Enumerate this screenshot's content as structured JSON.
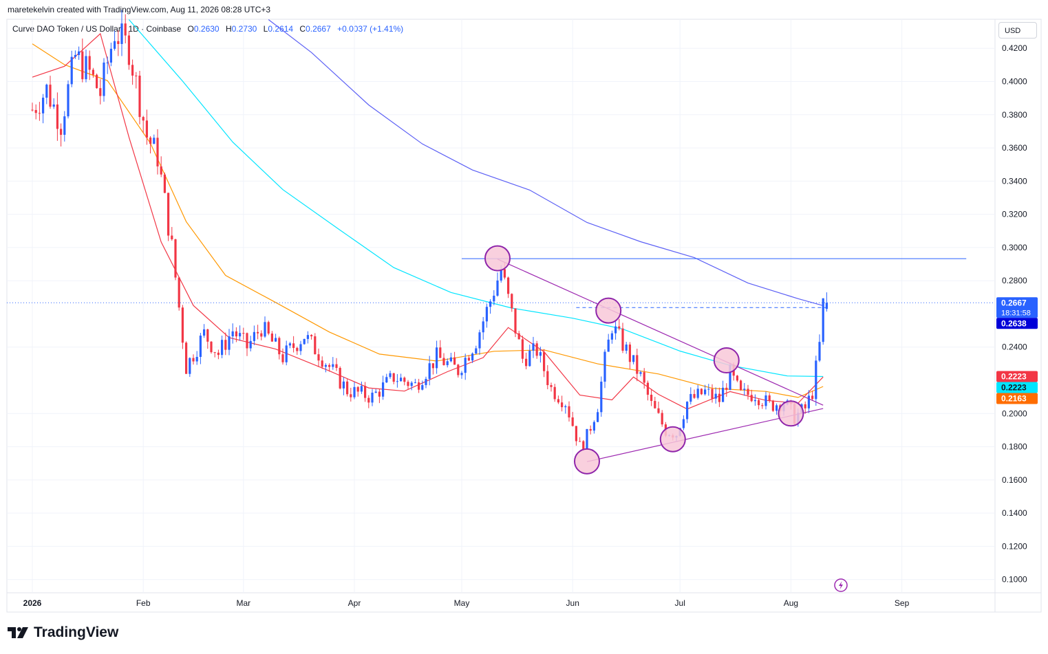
{
  "header": {
    "credit": "maretekelvin created with TradingView.com, Aug 11, 2026 08:28 UTC+3"
  },
  "legend": {
    "symbol": "Curve DAO Token / US Dollar · 1D · Coinbase",
    "o_label": "O",
    "o": "0.2630",
    "h_label": "H",
    "h": "0.2730",
    "l_label": "L",
    "l": "0.2614",
    "c_label": "C",
    "c": "0.2667",
    "change": "+0.0037 (+1.41%)"
  },
  "currency_button": "USD",
  "footer": {
    "brand": "TradingView"
  },
  "colors": {
    "up": "#2962ff",
    "down": "#f23645",
    "ema_fast": "#f23645",
    "ema_mid": "#ff9800",
    "ema_slow": "#00e5ff",
    "ema_long": "#5b5ff5",
    "trendline": "#9c27b0",
    "marker_fill": "#f8c8d8",
    "marker_stroke": "#8e24aa",
    "resistance": "#2962ff"
  },
  "chart_data": {
    "type": "candlestick",
    "y_range": [
      0.092,
      0.4375
    ],
    "y_ticks": [
      "0.4200",
      "0.4000",
      "0.3800",
      "0.3600",
      "0.3400",
      "0.3200",
      "0.3000",
      "0.2800",
      "0.2400",
      "0.2000",
      "0.1800",
      "0.1600",
      "0.1400",
      "0.1200",
      "0.1000"
    ],
    "x_labels": [
      {
        "label": "2026",
        "x": "2026-01-01"
      },
      {
        "label": "Feb",
        "x": "2026-02-01"
      },
      {
        "label": "Mar",
        "x": "2026-03-01"
      },
      {
        "label": "Apr",
        "x": "2026-04-01"
      },
      {
        "label": "May",
        "x": "2026-05-01"
      },
      {
        "label": "Jun",
        "x": "2026-06-01"
      },
      {
        "label": "Jul",
        "x": "2026-07-01"
      },
      {
        "label": "Aug",
        "x": "2026-08-01"
      },
      {
        "label": "Sep",
        "x": "2026-09-01"
      }
    ],
    "price_badges": [
      {
        "price": 0.2667,
        "label": "0.2667",
        "countdown": "18:31:58",
        "color": "#2962ff"
      },
      {
        "price": 0.2638,
        "label": "0.2638",
        "color": "#0000d8"
      },
      {
        "price": 0.2223,
        "label": "0.2223",
        "color": "#f23645"
      },
      {
        "price": 0.2223,
        "label": "0.2223",
        "color": "#00e5ff"
      },
      {
        "price": 0.2163,
        "label": "0.2163",
        "color": "#ff6d00"
      }
    ],
    "last_price": 0.2667,
    "dashed_level": 0.2638,
    "resistance": {
      "price": 0.2933,
      "from": "2026-05-01",
      "to": "2026-09-19"
    },
    "trend_upper": [
      {
        "x": "2026-05-11",
        "y": 0.293
      },
      {
        "x": "2026-08-10",
        "y": 0.205
      }
    ],
    "trend_lower": [
      {
        "x": "2026-06-05",
        "y": 0.171
      },
      {
        "x": "2026-08-10",
        "y": 0.203
      }
    ],
    "markers": [
      {
        "x": "2026-05-11",
        "y": 0.2935
      },
      {
        "x": "2026-06-11",
        "y": 0.262
      },
      {
        "x": "2026-06-29",
        "y": 0.1845
      },
      {
        "x": "2026-07-14",
        "y": 0.232
      },
      {
        "x": "2026-08-01",
        "y": 0.2
      },
      {
        "x": "2026-06-05",
        "y": 0.1712
      }
    ],
    "ema_fast_pts": [
      [
        "2026-01-01",
        0.4026
      ],
      [
        "2026-01-10",
        0.4092
      ],
      [
        "2026-01-20",
        0.4288
      ],
      [
        "2026-01-28",
        0.3665
      ],
      [
        "2026-02-06",
        0.3033
      ],
      [
        "2026-02-15",
        0.2651
      ],
      [
        "2026-02-25",
        0.2457
      ],
      [
        "2026-03-10",
        0.2388
      ],
      [
        "2026-03-25",
        0.2257
      ],
      [
        "2026-04-05",
        0.2154
      ],
      [
        "2026-04-15",
        0.2135
      ],
      [
        "2026-04-27",
        0.2252
      ],
      [
        "2026-05-07",
        0.2337
      ],
      [
        "2026-05-14",
        0.2518
      ],
      [
        "2026-05-24",
        0.2372
      ],
      [
        "2026-06-03",
        0.2111
      ],
      [
        "2026-06-12",
        0.2082
      ],
      [
        "2026-06-18",
        0.222
      ],
      [
        "2026-06-25",
        0.2115
      ],
      [
        "2026-07-03",
        0.2027
      ],
      [
        "2026-07-15",
        0.2132
      ],
      [
        "2026-07-25",
        0.2079
      ],
      [
        "2026-08-03",
        0.2062
      ],
      [
        "2026-08-10",
        0.222
      ]
    ],
    "ema_mid_pts": [
      [
        "2026-01-01",
        0.4227
      ],
      [
        "2026-01-10",
        0.4101
      ],
      [
        "2026-01-22",
        0.4005
      ],
      [
        "2026-02-03",
        0.3628
      ],
      [
        "2026-02-13",
        0.3156
      ],
      [
        "2026-02-24",
        0.2832
      ],
      [
        "2026-03-10",
        0.2669
      ],
      [
        "2026-03-25",
        0.2491
      ],
      [
        "2026-04-08",
        0.2358
      ],
      [
        "2026-04-24",
        0.2316
      ],
      [
        "2026-05-10",
        0.2375
      ],
      [
        "2026-05-24",
        0.2383
      ],
      [
        "2026-06-08",
        0.2299
      ],
      [
        "2026-06-25",
        0.2238
      ],
      [
        "2026-07-10",
        0.2152
      ],
      [
        "2026-07-25",
        0.2133
      ],
      [
        "2026-08-03",
        0.2097
      ],
      [
        "2026-08-10",
        0.2163
      ]
    ],
    "ema_slow_pts": [
      [
        "2026-01-28",
        0.4373
      ],
      [
        "2026-02-12",
        0.4002
      ],
      [
        "2026-02-26",
        0.3635
      ],
      [
        "2026-03-12",
        0.3349
      ],
      [
        "2026-03-28",
        0.3105
      ],
      [
        "2026-04-12",
        0.2879
      ],
      [
        "2026-04-28",
        0.2729
      ],
      [
        "2026-05-15",
        0.2635
      ],
      [
        "2026-06-01",
        0.2574
      ],
      [
        "2026-06-15",
        0.2509
      ],
      [
        "2026-07-01",
        0.2376
      ],
      [
        "2026-07-15",
        0.229
      ],
      [
        "2026-07-31",
        0.2226
      ],
      [
        "2026-08-10",
        0.2223
      ]
    ],
    "ema_long_pts": [
      [
        "2026-03-08",
        0.4373
      ],
      [
        "2026-03-20",
        0.4175
      ],
      [
        "2026-04-05",
        0.3859
      ],
      [
        "2026-04-20",
        0.3624
      ],
      [
        "2026-05-04",
        0.3467
      ],
      [
        "2026-05-20",
        0.3346
      ],
      [
        "2026-06-05",
        0.3151
      ],
      [
        "2026-06-20",
        0.3035
      ],
      [
        "2026-07-05",
        0.2939
      ],
      [
        "2026-07-20",
        0.2786
      ],
      [
        "2026-08-03",
        0.2692
      ],
      [
        "2026-08-10",
        0.265
      ]
    ],
    "candle_anchors": [
      [
        "2026-01-01",
        0.383
      ],
      [
        "2026-01-05",
        0.395
      ],
      [
        "2026-01-09",
        0.375
      ],
      [
        "2026-01-13",
        0.415
      ],
      [
        "2026-01-17",
        0.405
      ],
      [
        "2026-01-20",
        0.393
      ],
      [
        "2026-01-24",
        0.43
      ],
      [
        "2026-01-28",
        0.42
      ],
      [
        "2026-02-02",
        0.367
      ],
      [
        "2026-02-05",
        0.355
      ],
      [
        "2026-02-09",
        0.3
      ],
      [
        "2026-02-13",
        0.228
      ],
      [
        "2026-02-15",
        0.236
      ],
      [
        "2026-02-18",
        0.248
      ],
      [
        "2026-02-22",
        0.236
      ],
      [
        "2026-02-26",
        0.25
      ],
      [
        "2026-03-02",
        0.24
      ],
      [
        "2026-03-06",
        0.252
      ],
      [
        "2026-03-12",
        0.234
      ],
      [
        "2026-03-18",
        0.247
      ],
      [
        "2026-03-24",
        0.231
      ],
      [
        "2026-03-30",
        0.214
      ],
      [
        "2026-04-06",
        0.21
      ],
      [
        "2026-04-12",
        0.222
      ],
      [
        "2026-04-18",
        0.217
      ],
      [
        "2026-04-24",
        0.234
      ],
      [
        "2026-04-30",
        0.226
      ],
      [
        "2026-05-05",
        0.244
      ],
      [
        "2026-05-09",
        0.268
      ],
      [
        "2026-05-12",
        0.287
      ],
      [
        "2026-05-15",
        0.26
      ],
      [
        "2026-05-18",
        0.233
      ],
      [
        "2026-05-22",
        0.238
      ],
      [
        "2026-05-26",
        0.215
      ],
      [
        "2026-05-30",
        0.207
      ],
      [
        "2026-06-03",
        0.18
      ],
      [
        "2026-06-05",
        0.186
      ],
      [
        "2026-06-08",
        0.205
      ],
      [
        "2026-06-10",
        0.232
      ],
      [
        "2026-06-12",
        0.253
      ],
      [
        "2026-06-16",
        0.238
      ],
      [
        "2026-06-20",
        0.222
      ],
      [
        "2026-06-23",
        0.205
      ],
      [
        "2026-06-27",
        0.19
      ],
      [
        "2026-06-30",
        0.188
      ],
      [
        "2026-07-03",
        0.207
      ],
      [
        "2026-07-08",
        0.213
      ],
      [
        "2026-07-12",
        0.208
      ],
      [
        "2026-07-15",
        0.224
      ],
      [
        "2026-07-18",
        0.211
      ],
      [
        "2026-07-22",
        0.212
      ],
      [
        "2026-07-26",
        0.205
      ],
      [
        "2026-07-30",
        0.207
      ],
      [
        "2026-08-02",
        0.198
      ],
      [
        "2026-08-05",
        0.203
      ],
      [
        "2026-08-07",
        0.213
      ],
      [
        "2026-08-09",
        0.241
      ],
      [
        "2026-08-10",
        0.266
      ],
      [
        "2026-08-11",
        0.267
      ]
    ]
  }
}
